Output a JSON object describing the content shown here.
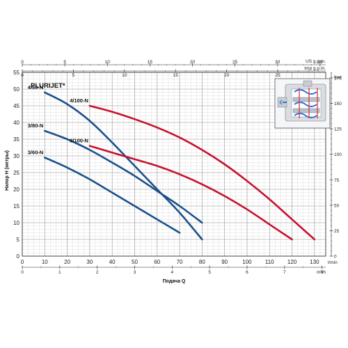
{
  "chart_data": {
    "type": "line",
    "title": "PLURIJET*",
    "xlabel": "Подача Q",
    "ylabel": "Напор H (метры)",
    "x_unit": "l/min",
    "xlim": [
      0,
      135
    ],
    "ylim": [
      0,
      55
    ],
    "x_ticks": [
      0,
      10,
      20,
      30,
      40,
      50,
      60,
      70,
      80,
      90,
      100,
      110,
      120,
      130
    ],
    "y_ticks": [
      0,
      5,
      10,
      15,
      20,
      25,
      30,
      35,
      40,
      45,
      50,
      55
    ],
    "grid": true,
    "secondary_axes": {
      "top_us_gpm": {
        "unit": "US g.p.m.",
        "ticks": [
          0,
          5,
          10,
          15,
          20,
          25,
          30,
          35
        ]
      },
      "top_imp_gpm": {
        "unit": "Imp g.p.m.",
        "ticks": [
          0,
          5,
          10,
          15,
          20,
          25
        ]
      },
      "bottom_m3h": {
        "unit": "m³/h",
        "ticks": [
          0,
          1,
          2,
          3,
          4,
          5,
          6,
          7,
          8
        ]
      },
      "right_feet": {
        "unit": "feet",
        "ticks": [
          0,
          25,
          50,
          75,
          100,
          125,
          150,
          175
        ]
      }
    },
    "series": [
      {
        "name": "4/80-N",
        "color": "#1b4f8c",
        "x": [
          10,
          20,
          30,
          40,
          50,
          60,
          70,
          80
        ],
        "y": [
          49,
          45.5,
          40.5,
          34,
          27,
          20,
          13,
          5
        ]
      },
      {
        "name": "3/80-N",
        "color": "#1b4f8c",
        "x": [
          10,
          20,
          30,
          40,
          50,
          60,
          70,
          80
        ],
        "y": [
          37.5,
          35,
          31.8,
          28,
          24,
          19.5,
          15,
          10
        ]
      },
      {
        "name": "3/60-N",
        "color": "#1b4f8c",
        "x": [
          10,
          20,
          30,
          40,
          50,
          60,
          70
        ],
        "y": [
          29.5,
          26.5,
          23,
          19,
          15,
          11,
          7
        ]
      },
      {
        "name": "4/100-N",
        "color": "#c8102e",
        "x": [
          30,
          40,
          50,
          60,
          70,
          80,
          90,
          100,
          110,
          120,
          130
        ],
        "y": [
          45,
          43.2,
          41,
          38.5,
          35.5,
          31.8,
          27.5,
          22.5,
          17,
          11,
          5
        ]
      },
      {
        "name": "3/100-N",
        "color": "#c8102e",
        "x": [
          30,
          40,
          50,
          60,
          70,
          80,
          90,
          100,
          110,
          120
        ],
        "y": [
          33,
          31,
          29,
          27,
          24.5,
          21.5,
          18,
          14,
          9.5,
          5
        ]
      }
    ]
  }
}
